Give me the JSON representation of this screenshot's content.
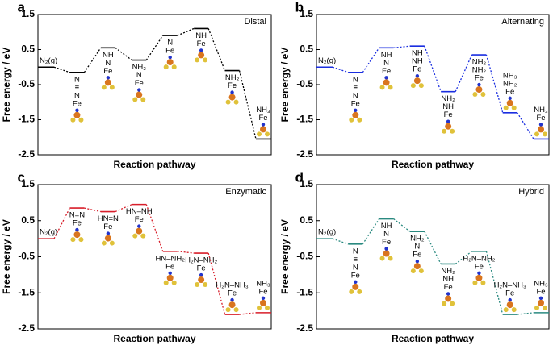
{
  "chart_data": [
    {
      "type": "step",
      "panel": "a",
      "title": "Distal",
      "x_label": "Reaction pathway",
      "y_label": "Free energy / eV",
      "color": "#000000",
      "ylim": [
        -2.5,
        1.5
      ],
      "yticks": [
        1.5,
        0.5,
        -0.5,
        -1.5,
        -2.5
      ],
      "species": [
        [
          "N₂(g)"
        ],
        [
          "N",
          "≡",
          "N",
          "Fe"
        ],
        [
          "NH",
          "N",
          "Fe"
        ],
        [
          "NH₂",
          "N",
          "Fe"
        ],
        [
          "N",
          "Fe"
        ],
        [
          "NH",
          "Fe"
        ],
        [
          "NH₂",
          "Fe"
        ],
        [
          "NH₃",
          "Fe"
        ]
      ],
      "values": [
        0,
        -0.15,
        0.55,
        0.2,
        0.9,
        1.1,
        -0.1,
        -2.05
      ]
    },
    {
      "type": "step",
      "panel": "b",
      "title": "Alternating",
      "x_label": "Reaction pathway",
      "y_label": "Free energy / eV",
      "color": "#1a2ee0",
      "ylim": [
        -2.5,
        1.5
      ],
      "yticks": [
        1.5,
        0.5,
        -0.5,
        -1.5,
        -2.5
      ],
      "species": [
        [
          "N₂(g)"
        ],
        [
          "N",
          "≡",
          "N",
          "Fe"
        ],
        [
          "NH",
          "N",
          "Fe"
        ],
        [
          "NH",
          "NH",
          "Fe"
        ],
        [
          "NH₂",
          "NH",
          "Fe"
        ],
        [
          "NH₂",
          "NH₂",
          "Fe"
        ],
        [
          "NH₃",
          "NH₂",
          "Fe"
        ],
        [
          "NH₃",
          "Fe"
        ]
      ],
      "values": [
        0,
        -0.15,
        0.55,
        0.6,
        -0.7,
        0.35,
        -1.3,
        -2.05
      ]
    },
    {
      "type": "step",
      "panel": "c",
      "title": "Enzymatic",
      "x_label": "Reaction pathway",
      "y_label": "Free energy / eV",
      "color": "#d81e2a",
      "ylim": [
        -2.5,
        1.5
      ],
      "yticks": [
        1.5,
        0.5,
        -0.5,
        -1.5,
        -2.5
      ],
      "species": [
        [
          "N₂(g)"
        ],
        [
          "N=N",
          "Fe"
        ],
        [
          "HN=N",
          "Fe"
        ],
        [
          "HN–NH",
          "Fe"
        ],
        [
          "HN–NH₂",
          "Fe"
        ],
        [
          "H₂N–NH₂",
          "Fe"
        ],
        [
          "H₂N–NH₃",
          "Fe"
        ],
        [
          "NH₃",
          "Fe"
        ]
      ],
      "values": [
        0,
        0.85,
        0.75,
        0.95,
        -0.35,
        -0.4,
        -2.1,
        -2.05
      ]
    },
    {
      "type": "step",
      "panel": "d",
      "title": "Hybrid",
      "x_label": "Reaction pathway",
      "y_label": "Free energy / eV",
      "color": "#2a8a80",
      "ylim": [
        -2.5,
        1.5
      ],
      "yticks": [
        1.5,
        0.5,
        -0.5,
        -1.5,
        -2.5
      ],
      "species": [
        [
          "N₂(g)"
        ],
        [
          "N",
          "≡",
          "N",
          "Fe"
        ],
        [
          "NH",
          "N",
          "Fe"
        ],
        [
          "NH₂",
          "N",
          "Fe"
        ],
        [
          "NH₂",
          "NH",
          "Fe"
        ],
        [
          "H₂N–NH₂",
          "Fe"
        ],
        [
          "H₂N–NH₃",
          "Fe"
        ],
        [
          "NH₃",
          "Fe"
        ]
      ],
      "values": [
        0,
        -0.15,
        0.55,
        0.2,
        -0.7,
        -0.35,
        -2.1,
        -2.05
      ]
    }
  ]
}
